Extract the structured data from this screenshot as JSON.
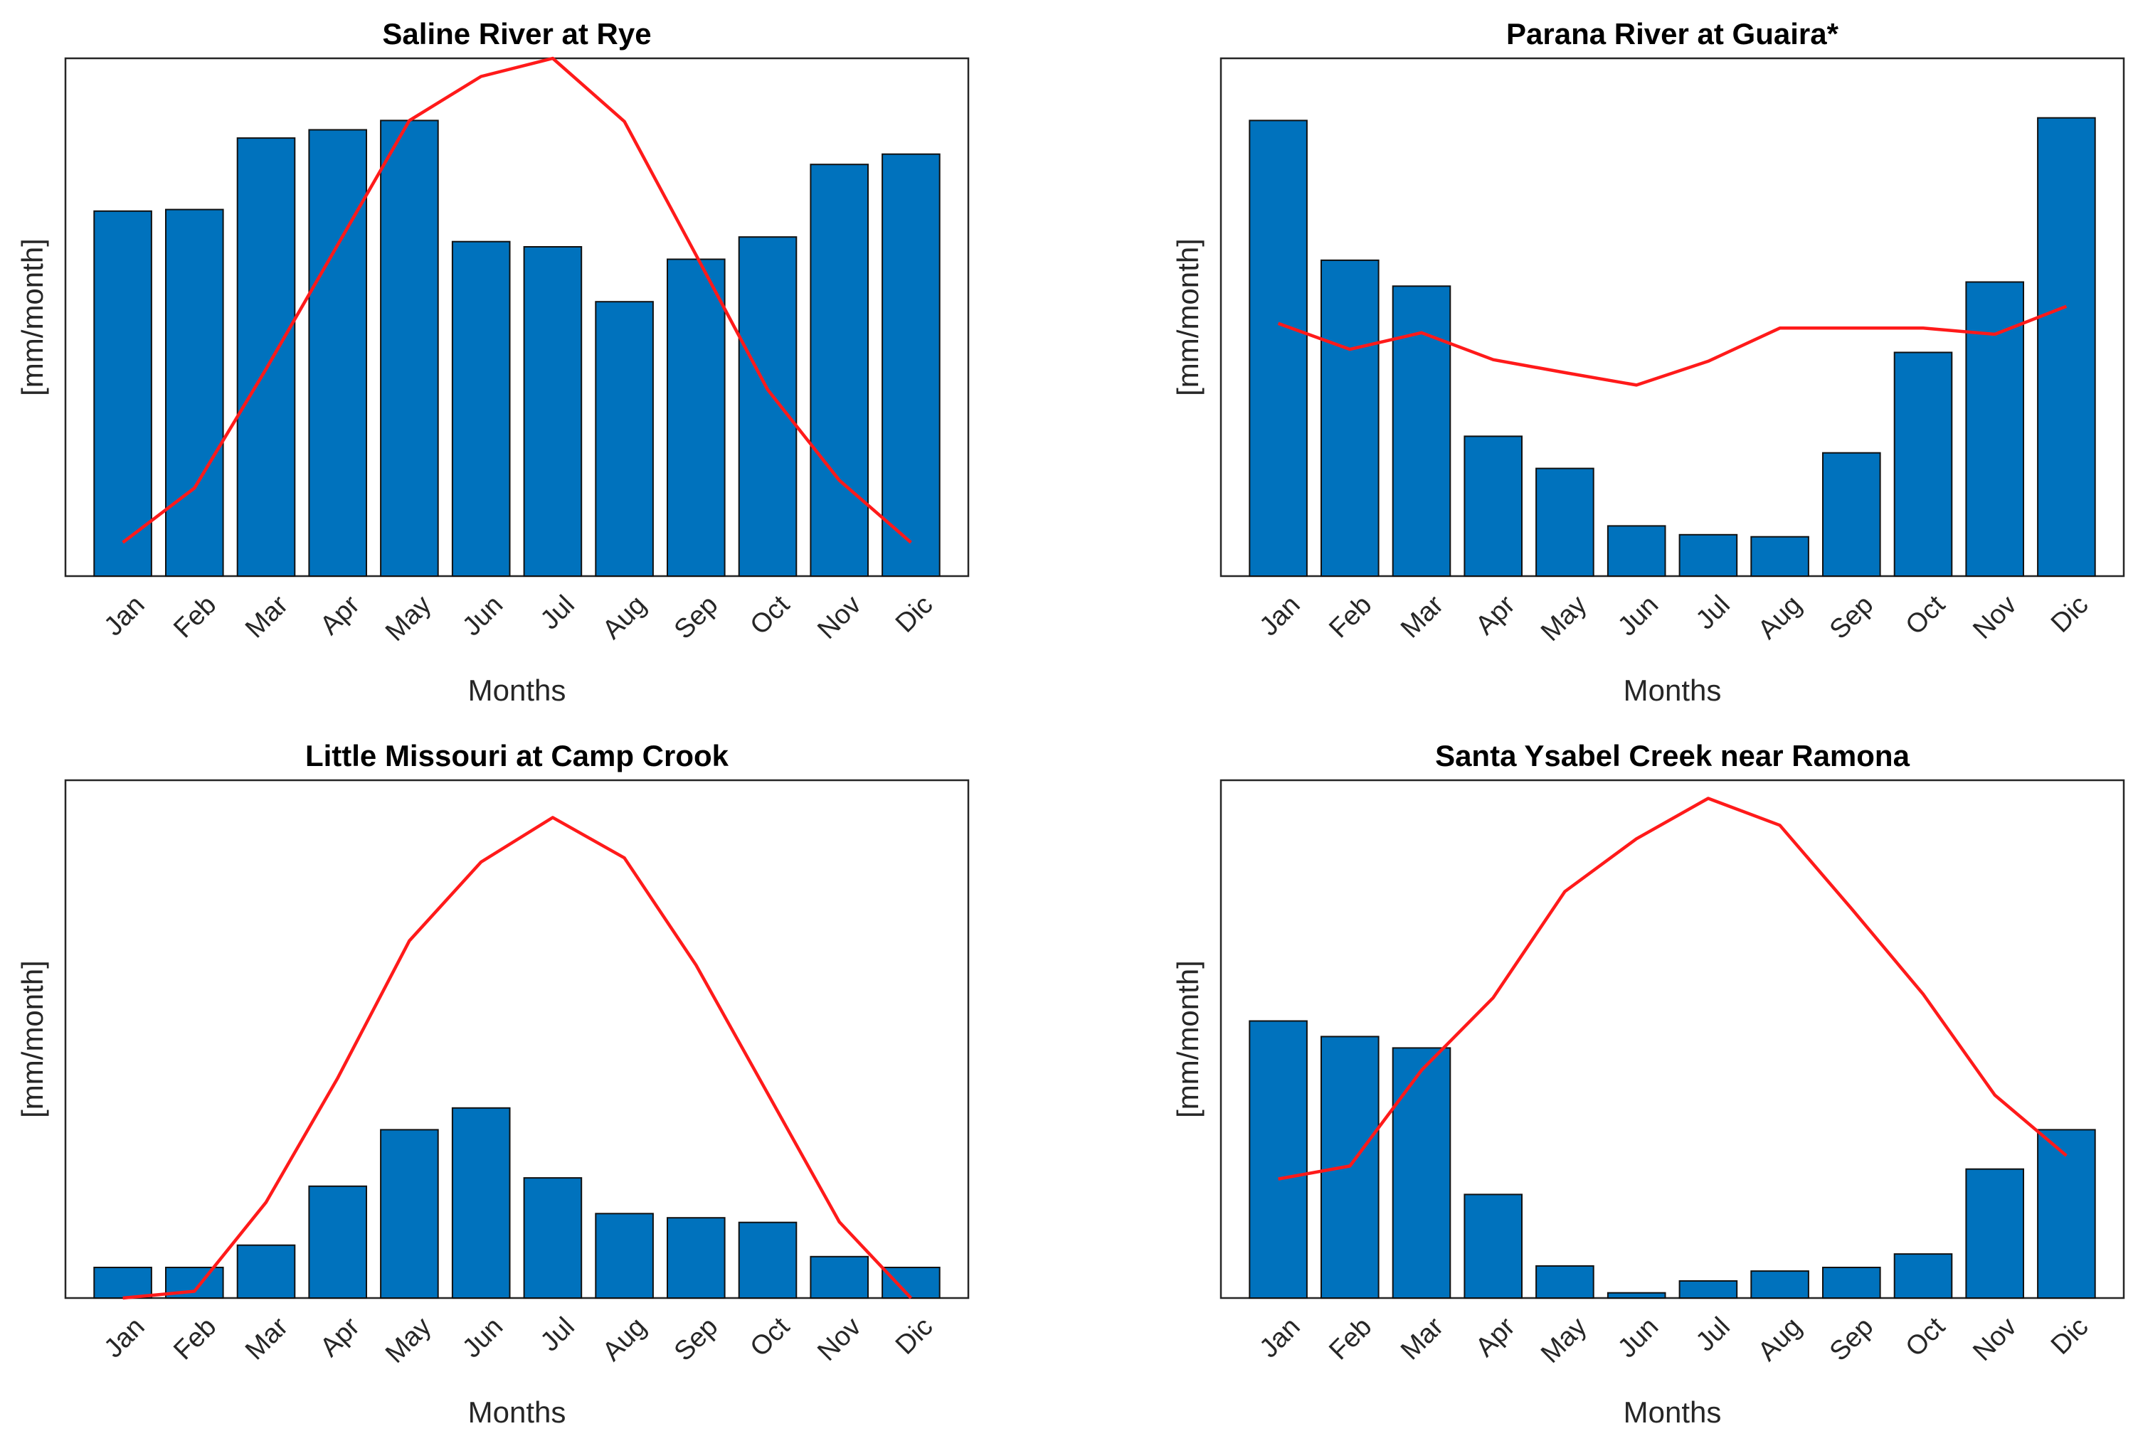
{
  "colors": {
    "bar": "#0072BD",
    "line": "#ff1a1a"
  },
  "chart_data": [
    {
      "type": "bar",
      "title": "Saline River at Rye",
      "xlabel": "Months",
      "ylabel": "[mm/month]",
      "categories": [
        "Jan",
        "Feb",
        "Mar",
        "Apr",
        "May",
        "Jun",
        "Jul",
        "Aug",
        "Sep",
        "Oct",
        "Nov",
        "Dic"
      ],
      "ylim": [
        0,
        1
      ],
      "series": [
        {
          "name": "bars",
          "kind": "bar",
          "values": [
            0.705,
            0.708,
            0.846,
            0.862,
            0.88,
            0.646,
            0.636,
            0.53,
            0.612,
            0.655,
            0.795,
            0.815
          ]
        },
        {
          "name": "line",
          "kind": "line",
          "values": [
            0.065,
            0.17,
            0.4,
            0.64,
            0.88,
            0.965,
            1.0,
            0.878,
            0.62,
            0.36,
            0.185,
            0.065
          ]
        }
      ]
    },
    {
      "type": "bar",
      "title": "Parana River at Guaira*",
      "xlabel": "Months",
      "ylabel": "[mm/month]",
      "categories": [
        "Jan",
        "Feb",
        "Mar",
        "Apr",
        "May",
        "Jun",
        "Jul",
        "Aug",
        "Sep",
        "Oct",
        "Nov",
        "Dic"
      ],
      "ylim": [
        0,
        1
      ],
      "series": [
        {
          "name": "bars",
          "kind": "bar",
          "values": [
            0.88,
            0.61,
            0.56,
            0.27,
            0.208,
            0.097,
            0.08,
            0.076,
            0.238,
            0.432,
            0.568,
            0.885
          ]
        },
        {
          "name": "line",
          "kind": "line",
          "values": [
            0.488,
            0.438,
            0.47,
            0.418,
            0.393,
            0.369,
            0.415,
            0.479,
            0.479,
            0.479,
            0.467,
            0.521
          ]
        }
      ]
    },
    {
      "type": "bar",
      "title": "Little Missouri at Camp Crook",
      "xlabel": "Months",
      "ylabel": "[mm/month]",
      "categories": [
        "Jan",
        "Feb",
        "Mar",
        "Apr",
        "May",
        "Jun",
        "Jul",
        "Aug",
        "Sep",
        "Oct",
        "Nov",
        "Dic"
      ],
      "ylim": [
        0,
        1
      ],
      "series": [
        {
          "name": "bars",
          "kind": "bar",
          "values": [
            0.059,
            0.059,
            0.102,
            0.216,
            0.325,
            0.367,
            0.232,
            0.163,
            0.155,
            0.146,
            0.08,
            0.059
          ]
        },
        {
          "name": "line",
          "kind": "line",
          "values": [
            0.0,
            0.013,
            0.185,
            0.425,
            0.69,
            0.842,
            0.928,
            0.85,
            0.643,
            0.395,
            0.147,
            0.0
          ]
        }
      ]
    },
    {
      "type": "bar",
      "title": "Santa Ysabel Creek near Ramona",
      "xlabel": "Months",
      "ylabel": "[mm/month]",
      "categories": [
        "Jan",
        "Feb",
        "Mar",
        "Apr",
        "May",
        "Jun",
        "Jul",
        "Aug",
        "Sep",
        "Oct",
        "Nov",
        "Dic"
      ],
      "ylim": [
        0,
        1
      ],
      "series": [
        {
          "name": "bars",
          "kind": "bar",
          "values": [
            0.535,
            0.505,
            0.483,
            0.2,
            0.062,
            0.01,
            0.033,
            0.052,
            0.059,
            0.085,
            0.249,
            0.325
          ]
        },
        {
          "name": "line",
          "kind": "line",
          "values": [
            0.23,
            0.255,
            0.44,
            0.58,
            0.785,
            0.887,
            0.965,
            0.913,
            0.752,
            0.587,
            0.392,
            0.275
          ]
        }
      ]
    }
  ]
}
